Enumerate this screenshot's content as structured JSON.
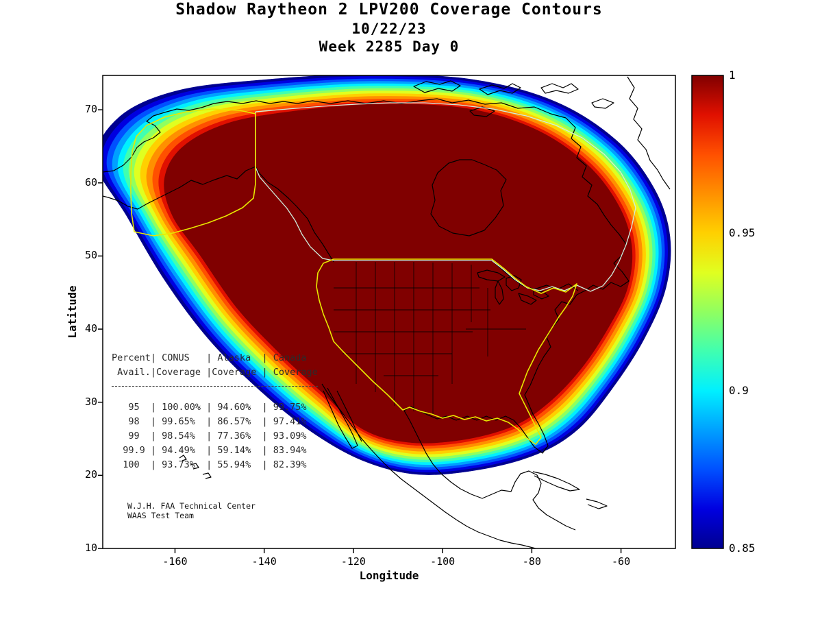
{
  "figure": {
    "title_line1": "Shadow Raytheon 2 LPV200 Coverage Contours",
    "title_line2": "10/22/23",
    "title_line3": "Week 2285 Day 0"
  },
  "axes": {
    "xlabel": "Longitude",
    "ylabel": "Latitude",
    "x_tick_labels": [
      "-160",
      "-140",
      "-120",
      "-100",
      "-80",
      "-60"
    ],
    "x_tick_values": [
      -160,
      -140,
      -120,
      -100,
      -80,
      -60
    ],
    "y_tick_labels": [
      "70",
      "60",
      "50",
      "40",
      "30",
      "20",
      "10"
    ],
    "y_tick_values": [
      70,
      60,
      50,
      40,
      30,
      20,
      10
    ],
    "x_limits": [
      -176.2,
      -47.8
    ],
    "y_limits": [
      10,
      74.7
    ]
  },
  "colorbar": {
    "tick_labels": [
      "1",
      "0.95",
      "0.9",
      "0.85"
    ],
    "tick_values": [
      1,
      0.95,
      0.9,
      0.85
    ],
    "range": [
      0.85,
      1
    ]
  },
  "coverage_table": {
    "header_line1": "Percent| CONUS   | Alaska  | Canada",
    "header_line2": " Avail.|Coverage |Coverage | Coverage",
    "columns": [
      "Percent Avail.",
      "CONUS Coverage",
      "Alaska Coverage",
      "Canada Coverage"
    ],
    "rows": [
      [
        "95",
        "100.00%",
        "94.60%",
        "99.75%"
      ],
      [
        "98",
        "99.65%",
        "86.57%",
        "97.41%"
      ],
      [
        "99",
        "98.54%",
        "77.36%",
        "93.09%"
      ],
      [
        "99.9",
        "94.49%",
        "59.14%",
        "83.94%"
      ],
      [
        "100",
        "93.73%",
        "55.94%",
        "82.39%"
      ]
    ]
  },
  "annotation": {
    "line1": "W.J.H. FAA Technical Center",
    "line2": "WAAS Test Team"
  },
  "chart_data": {
    "type": "filled_contour_map",
    "title": "Shadow Raytheon 2 LPV200 Coverage Contours",
    "date": "10/22/23",
    "week_day": "Week 2285 Day 0",
    "xlabel": "Longitude",
    "ylabel": "Latitude",
    "xlim": [
      -176.2,
      -47.8
    ],
    "ylim": [
      10,
      74.7
    ],
    "colormap": "jet",
    "colorbar_range": [
      0.85,
      1
    ],
    "colorbar_ticks": [
      1,
      0.95,
      0.9,
      0.85
    ],
    "contour_levels": [
      0.85,
      0.8625,
      0.875,
      0.8875,
      0.9,
      0.9125,
      0.925,
      0.9375,
      0.95,
      0.9625,
      0.975,
      0.9875,
      1.0
    ],
    "contour_colors": [
      "#000090",
      "#0000e0",
      "#0050ff",
      "#00a0ff",
      "#00f0ff",
      "#40ffb0",
      "#90ff60",
      "#e0ff20",
      "#ffd000",
      "#ff9000",
      "#ff5000",
      "#e01000",
      "#800000"
    ],
    "coverage_stats": {
      "percent_avail": [
        95,
        98,
        99,
        99.9,
        100
      ],
      "conus_coverage_pct": [
        100.0,
        99.65,
        98.54,
        94.49,
        93.73
      ],
      "alaska_coverage_pct": [
        94.6,
        86.57,
        77.36,
        59.14,
        55.94
      ],
      "canada_coverage_pct": [
        99.75,
        97.41,
        93.09,
        83.94,
        82.39
      ]
    }
  }
}
